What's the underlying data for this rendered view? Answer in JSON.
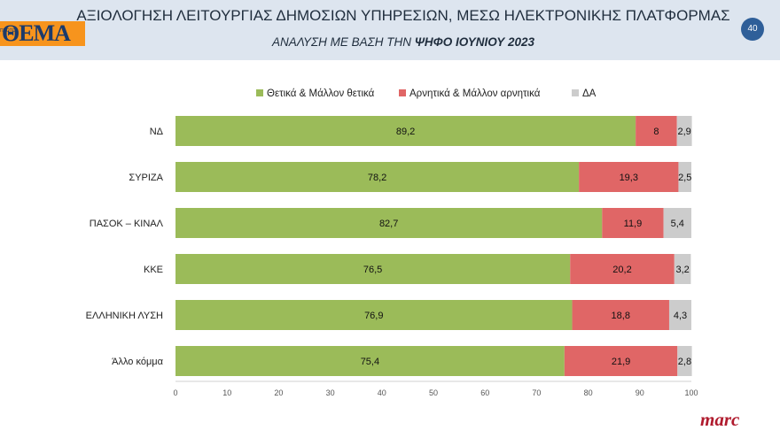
{
  "header": {
    "logo_text": "ΘΕΜΑ",
    "logo_small": "ΠΡΩΤΟ",
    "title": "ΑΞΙΟΛΟΓΗΣΗ ΛΕΙΤΟΥΡΓΙΑΣ ΔΗΜΟΣΙΩΝ ΥΠΗΡΕΣΙΩΝ, ΜΕΣΩ ΗΛΕΚΤΡΟΝΙΚΗΣ ΠΛΑΤΦΟΡΜΑΣ",
    "subtitle_prefix": "ΑΝΑΛΥΣΗ ΜΕ ΒΑΣΗ ΤΗΝ ",
    "subtitle_bold": "ΨΗΦΟ ΙΟΥΝΙΟΥ 2023",
    "page_number": "40"
  },
  "footer": {
    "brand": "marc"
  },
  "colors": {
    "positive": "#9bbb59",
    "negative": "#e06666",
    "da": "#cccccc",
    "header_bg": "#dde5ef",
    "page_badge": "#2f5f99"
  },
  "chart_data": {
    "type": "bar",
    "orientation": "horizontal",
    "stacked": true,
    "categories": [
      "ΝΔ",
      "ΣΥΡΙΖΑ",
      "ΠΑΣΟΚ – ΚΙΝΑΛ",
      "ΚΚΕ",
      "ΕΛΛΗΝΙΚΗ ΛΥΣΗ",
      "Άλλο κόμμα"
    ],
    "series": [
      {
        "name": "Θετικά & Μάλλον θετικά",
        "color": "#9bbb59",
        "values": [
          89.2,
          78.2,
          82.7,
          76.5,
          76.9,
          75.4
        ],
        "labels": [
          "89,2",
          "78,2",
          "82,7",
          "76,5",
          "76,9",
          "75,4"
        ]
      },
      {
        "name": "Αρνητικά & Μάλλον αρνητικά",
        "color": "#e06666",
        "values": [
          8,
          19.3,
          11.9,
          20.2,
          18.8,
          21.9
        ],
        "labels": [
          "8",
          "19,3",
          "11,9",
          "20,2",
          "18,8",
          "21,9"
        ]
      },
      {
        "name": "ΔΑ",
        "color": "#cccccc",
        "values": [
          2.9,
          2.5,
          5.4,
          3.2,
          4.3,
          2.8
        ],
        "labels": [
          "2,9",
          "2,5",
          "5,4",
          "3,2",
          "4,3",
          "2,8"
        ]
      }
    ],
    "xlim": [
      0,
      100
    ],
    "xticks": [
      "0",
      "10",
      "20",
      "30",
      "40",
      "50",
      "60",
      "70",
      "80",
      "90",
      "100"
    ],
    "legend_position": "top",
    "grid": false
  }
}
